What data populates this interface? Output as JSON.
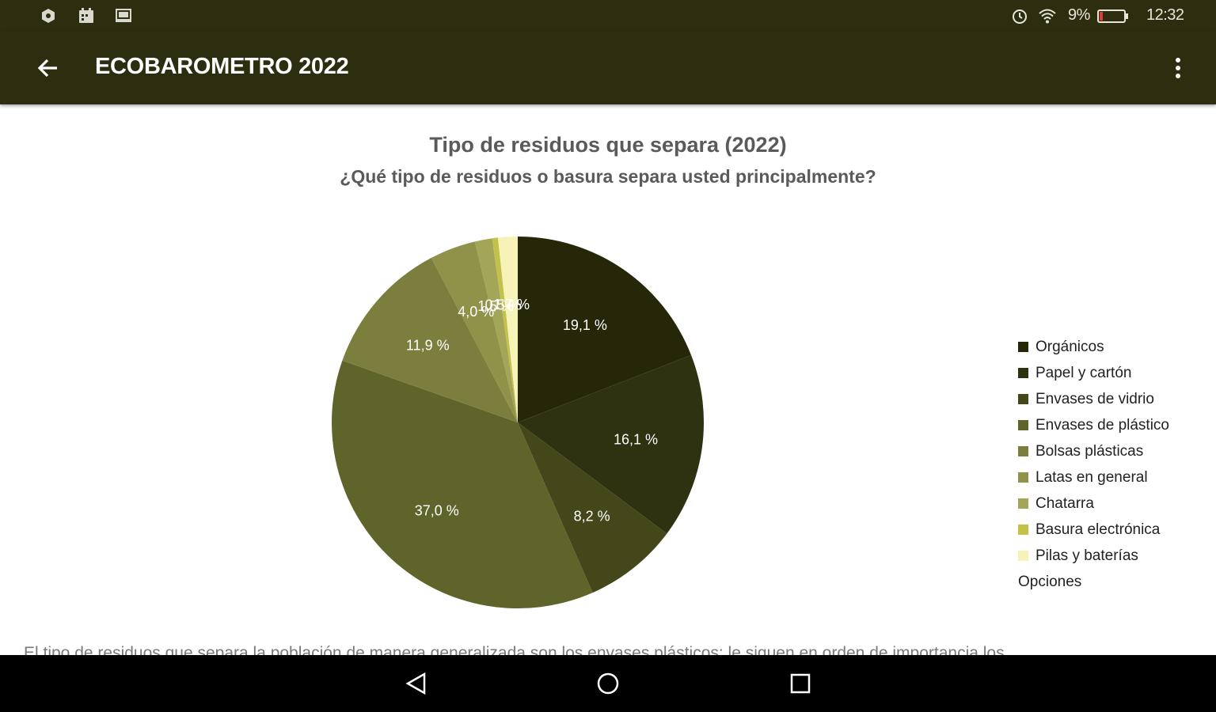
{
  "status_bar": {
    "battery_percent": "9%",
    "time": "12:32",
    "icons": [
      "app-notification-icon",
      "calendar-icon",
      "cast-icon",
      "alarm-icon",
      "wifi-icon",
      "battery-icon"
    ]
  },
  "app_bar": {
    "title": "ECOBAROMETRO 2022",
    "back_icon": "arrow-back-icon",
    "menu_icon": "more-vert-icon"
  },
  "chart": {
    "title": "Tipo de residuos que separa (2022)",
    "subtitle": "¿Qué tipo de residuos o basura separa usted principalmente?"
  },
  "chart_data": {
    "type": "pie",
    "title": "Tipo de residuos que separa (2022)",
    "subtitle": "¿Qué tipo de residuos o basura separa usted principalmente?",
    "legend_title": "Opciones",
    "legend_position": "right",
    "slices": [
      {
        "name": "Orgánicos",
        "value": 19.1,
        "label": "19,1 %",
        "color": "#262709"
      },
      {
        "name": "Papel y cartón",
        "value": 16.1,
        "label": "16,1 %",
        "color": "#2e3211"
      },
      {
        "name": "Envases de vidrio",
        "value": 8.2,
        "label": "8,2 %",
        "color": "#434719"
      },
      {
        "name": "Envases de plástico",
        "value": 37.0,
        "label": "37,0 %",
        "color": "#5f642b"
      },
      {
        "name": "Bolsas plásticas",
        "value": 11.9,
        "label": "11,9 %",
        "color": "#7b7e3c"
      },
      {
        "name": "Latas en general",
        "value": 4.0,
        "label": "4,0 %",
        "color": "#8f9248"
      },
      {
        "name": "Chatarra",
        "value": 1.5,
        "label": "1,5 %",
        "color": "#a3a559"
      },
      {
        "name": "Basura electrónica",
        "value": 0.5,
        "label": "0,5 %",
        "color": "#c4c14b"
      },
      {
        "name": "Pilas y baterías",
        "value": 1.7,
        "label": "1,7 %",
        "color": "#f7f3b8"
      }
    ]
  },
  "description": "El tipo de residuos que separa la población de manera generalizada son los envases plásticos; le siguen en orden de importancia los",
  "nav_bar": {
    "icons": [
      "nav-back-icon",
      "nav-home-icon",
      "nav-recents-icon"
    ]
  }
}
